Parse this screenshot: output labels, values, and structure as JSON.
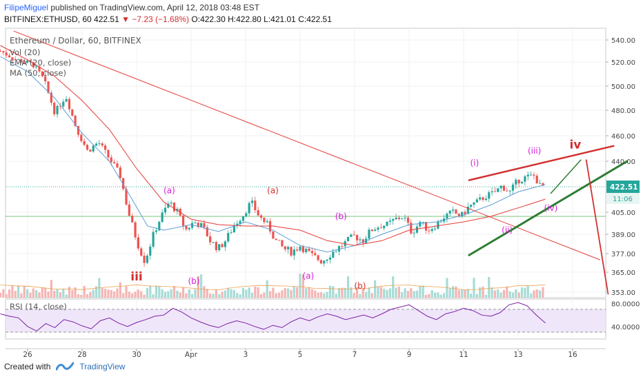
{
  "header": {
    "username": "FilipeMiguel",
    "published": "published on TradingView.com, April 12, 2018 03:48 EST",
    "symbol_line": "BITFINEX:ETHUSD, 60",
    "last": "422.51",
    "change": "−7.23 (−1.68%)",
    "ohlc": "O:422.30 H:422.80 L:421.01 C:422.51"
  },
  "footer": {
    "created_with": "Created with",
    "brand": "TradingView"
  },
  "colors": {
    "up": "#26a69a",
    "down": "#ef5350",
    "ma50": "#e53935",
    "ema20": "#5b9bd5",
    "trend": "#e53935",
    "channel": "#2e7d32",
    "wave_magenta": "#d81bd8",
    "wave_red": "#d32f2f",
    "rsi": "#7b1fa2",
    "price_tag": "#26a69a"
  },
  "chart_data": [
    {
      "type": "candlestick",
      "title": "Ethereum / Dollar, 60, BITFINEX",
      "legend": [
        "Vol (20)",
        "EMA (20, close)",
        "MA (50, close)"
      ],
      "price_label": "422.51",
      "countdown_label": "11:06",
      "y_ticks": [
        "540.00",
        "520.00",
        "500.00",
        "480.00",
        "460.00",
        "440.00",
        "405.00",
        "389.00",
        "377.00",
        "365.00",
        "353.00"
      ],
      "x_ticks": [
        "26",
        "28",
        "30",
        "Apr",
        "3",
        "5",
        "7",
        "9",
        "11",
        "13",
        "16"
      ],
      "ylim": [
        350,
        548
      ],
      "price_path": [
        [
          25.0,
          530
        ],
        [
          25.6,
          522
        ],
        [
          26.2,
          518
        ],
        [
          26.6,
          505
        ],
        [
          27.0,
          478
        ],
        [
          27.4,
          492
        ],
        [
          27.8,
          465
        ],
        [
          28.2,
          448
        ],
        [
          28.6,
          455
        ],
        [
          29.0,
          442
        ],
        [
          29.4,
          430
        ],
        [
          29.7,
          405
        ],
        [
          30.0,
          385
        ],
        [
          30.3,
          372
        ],
        [
          30.6,
          388
        ],
        [
          30.9,
          402
        ],
        [
          31.2,
          412
        ],
        [
          31.5,
          405
        ],
        [
          31.8,
          392
        ],
        [
          32.1,
          398
        ],
        [
          32.4,
          395
        ],
        [
          32.7,
          385
        ],
        [
          33.0,
          380
        ],
        [
          33.3,
          386
        ],
        [
          33.6,
          396
        ],
        [
          33.9,
          403
        ],
        [
          34.2,
          412
        ],
        [
          34.5,
          402
        ],
        [
          34.8,
          396
        ],
        [
          35.1,
          385
        ],
        [
          35.4,
          380
        ],
        [
          35.7,
          378
        ],
        [
          36.0,
          382
        ],
        [
          36.4,
          376
        ],
        [
          36.8,
          372
        ],
        [
          37.2,
          378
        ],
        [
          37.6,
          383
        ],
        [
          38.0,
          388
        ],
        [
          38.3,
          385
        ],
        [
          38.6,
          392
        ],
        [
          38.9,
          395
        ],
        [
          39.2,
          396
        ],
        [
          39.5,
          400
        ],
        [
          39.8,
          402
        ],
        [
          40.1,
          390
        ],
        [
          40.4,
          398
        ],
        [
          40.7,
          392
        ],
        [
          41.0,
          396
        ],
        [
          41.3,
          402
        ],
        [
          41.6,
          405
        ],
        [
          41.9,
          402
        ],
        [
          42.2,
          409
        ],
        [
          42.5,
          412
        ],
        [
          42.8,
          416
        ],
        [
          43.1,
          418
        ],
        [
          43.4,
          423
        ],
        [
          43.7,
          419
        ],
        [
          44.0,
          427
        ],
        [
          44.3,
          429
        ],
        [
          44.6,
          430
        ],
        [
          44.8,
          423
        ],
        [
          45.0,
          422.5
        ]
      ],
      "ema20_path": [
        [
          25.0,
          525
        ],
        [
          26.0,
          512
        ],
        [
          27.0,
          490
        ],
        [
          28.0,
          462
        ],
        [
          29.0,
          440
        ],
        [
          29.8,
          415
        ],
        [
          30.4,
          395
        ],
        [
          31.0,
          392
        ],
        [
          32.0,
          396
        ],
        [
          33.0,
          391
        ],
        [
          34.0,
          398
        ],
        [
          35.0,
          392
        ],
        [
          36.0,
          382
        ],
        [
          37.0,
          378
        ],
        [
          38.0,
          382
        ],
        [
          39.0,
          389
        ],
        [
          40.0,
          396
        ],
        [
          41.0,
          398
        ],
        [
          42.0,
          403
        ],
        [
          43.0,
          410
        ],
        [
          44.0,
          419
        ],
        [
          45.0,
          424
        ]
      ],
      "ma50_path": [
        [
          25.0,
          535
        ],
        [
          26.0,
          522
        ],
        [
          27.0,
          508
        ],
        [
          28.0,
          488
        ],
        [
          29.0,
          465
        ],
        [
          30.0,
          435
        ],
        [
          31.0,
          412
        ],
        [
          32.0,
          400
        ],
        [
          33.0,
          396
        ],
        [
          34.0,
          395
        ],
        [
          35.0,
          395
        ],
        [
          36.0,
          392
        ],
        [
          37.0,
          385
        ],
        [
          38.0,
          382
        ],
        [
          39.0,
          385
        ],
        [
          40.0,
          392
        ],
        [
          41.0,
          395
        ],
        [
          42.0,
          398
        ],
        [
          43.0,
          402
        ],
        [
          44.0,
          408
        ],
        [
          45.0,
          414
        ]
      ],
      "annotations": {
        "wave_labels": [
          {
            "text": "(a)",
            "x": 31.2,
            "y": 418,
            "color": "magenta"
          },
          {
            "text": "(b)",
            "x": 32.1,
            "y": 358,
            "color": "magenta"
          },
          {
            "text": "iii",
            "x": 30.0,
            "y": 360,
            "color": "red_bold"
          },
          {
            "text": "(a)",
            "x": 35.0,
            "y": 418,
            "color": "red"
          },
          {
            "text": "(a)",
            "x": 36.3,
            "y": 361,
            "color": "magenta"
          },
          {
            "text": "(b)",
            "x": 37.5,
            "y": 400,
            "color": "magenta"
          },
          {
            "text": "(b)",
            "x": 38.2,
            "y": 355,
            "color": "red"
          },
          {
            "text": "(i)",
            "x": 42.4,
            "y": 437,
            "color": "magenta"
          },
          {
            "text": "(ii)",
            "x": 43.6,
            "y": 390,
            "color": "magenta"
          },
          {
            "text": "(iii)",
            "x": 44.6,
            "y": 446,
            "color": "magenta"
          },
          {
            "text": "(iv)",
            "x": 45.2,
            "y": 406,
            "color": "magenta"
          },
          {
            "text": "iv",
            "x": 46.1,
            "y": 450,
            "color": "red_bold"
          }
        ],
        "lines": [
          {
            "from": [
              25.5,
              548
            ],
            "to": [
              47.0,
              373
            ],
            "color": "trend",
            "width": 1
          },
          {
            "from": [
              42.2,
              427
            ],
            "to": [
              47.5,
              452
            ],
            "color": "red_thick",
            "width": 2.5
          },
          {
            "from": [
              42.2,
              376
            ],
            "to": [
              48.0,
              440
            ],
            "color": "channel",
            "width": 3
          },
          {
            "from": [
              45.2,
              418
            ],
            "to": [
              46.3,
              441
            ],
            "color": "channel",
            "width": 1.5
          },
          {
            "from": [
              46.5,
              441
            ],
            "to": [
              47.3,
              352
            ],
            "color": "red_thick",
            "width": 1.8
          }
        ]
      }
    },
    {
      "type": "line",
      "title": "RSI (14, close)",
      "y_ticks": [
        "80.0000",
        "40.0000"
      ],
      "ylim": [
        18,
        88
      ],
      "band": [
        30,
        70
      ],
      "series": [
        {
          "values": [
            62,
            58,
            55,
            40,
            32,
            45,
            38,
            52,
            48,
            41,
            36,
            50,
            55,
            46,
            40,
            47,
            52,
            58,
            60,
            72,
            65,
            55,
            48,
            42,
            38,
            45,
            50,
            46,
            40,
            35,
            42,
            38,
            48,
            55,
            50,
            57,
            62,
            58,
            52,
            56,
            60,
            55,
            62,
            70,
            74,
            78,
            68,
            58,
            52,
            62,
            66,
            72,
            68,
            60,
            58,
            64,
            78,
            82,
            76,
            60,
            46
          ]
        }
      ]
    }
  ]
}
